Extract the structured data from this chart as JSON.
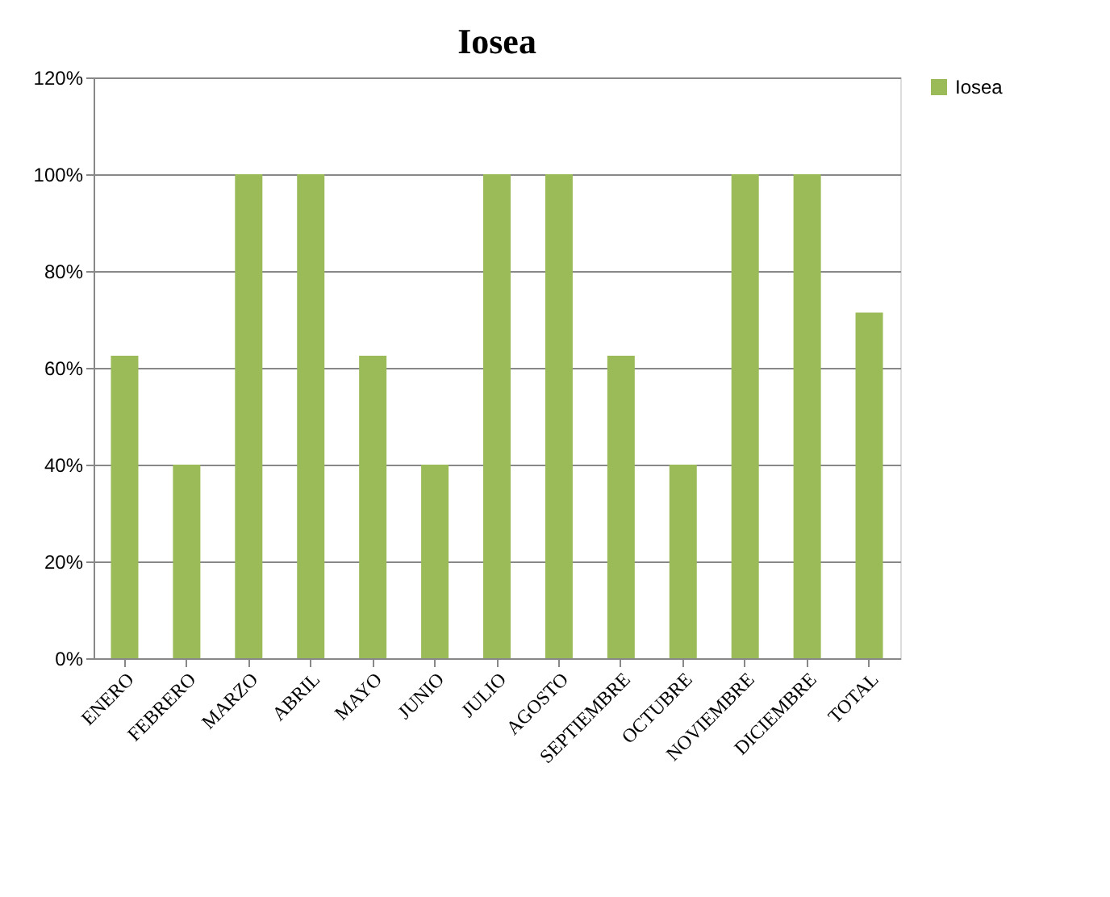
{
  "chart_data": {
    "type": "bar",
    "title": "Iosea",
    "categories": [
      "ENERO",
      "FEBRERO",
      "MARZO",
      "ABRIL",
      "MAYO",
      "JUNIO",
      "JULIO",
      "AGOSTO",
      "SEPTIEMBRE",
      "OCTUBRE",
      "NOVIEMBRE",
      "DICIEMBRE",
      "TOTAL"
    ],
    "series": [
      {
        "name": "Iosea",
        "color": "#9bbb59",
        "values": [
          62.5,
          40,
          100,
          100,
          62.5,
          40,
          100,
          100,
          62.5,
          40,
          100,
          100,
          71.4
        ]
      }
    ],
    "ylim": [
      0,
      120
    ],
    "yticks": [
      {
        "value": 0,
        "label": "0%"
      },
      {
        "value": 20,
        "label": "20%"
      },
      {
        "value": 40,
        "label": "40%"
      },
      {
        "value": 60,
        "label": "60%"
      },
      {
        "value": 80,
        "label": "80%"
      },
      {
        "value": 100,
        "label": "100%"
      },
      {
        "value": 120,
        "label": "120%"
      }
    ],
    "grid": "y",
    "legend": "right"
  }
}
